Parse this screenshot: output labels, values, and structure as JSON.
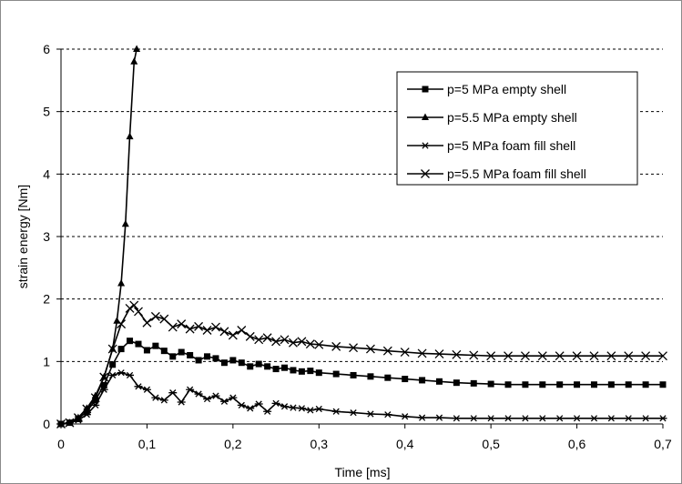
{
  "chart_data": {
    "type": "line",
    "xlabel": "Time [ms]",
    "ylabel": "strain energy [Nm]",
    "xlim": [
      0,
      0.7
    ],
    "ylim": [
      0,
      6
    ],
    "x_ticks": [
      "0",
      "0,1",
      "0,2",
      "0,3",
      "0,4",
      "0,5",
      "0,6",
      "0,7"
    ],
    "y_ticks": [
      "0",
      "1",
      "2",
      "3",
      "4",
      "5",
      "6"
    ],
    "grid": "horizontal dashed",
    "legend_position": "top-right",
    "series": [
      {
        "name": "p=5 MPa empty shell",
        "marker": "square",
        "points": [
          [
            0,
            0
          ],
          [
            0.01,
            0.02
          ],
          [
            0.02,
            0.08
          ],
          [
            0.03,
            0.2
          ],
          [
            0.04,
            0.38
          ],
          [
            0.05,
            0.62
          ],
          [
            0.06,
            0.95
          ],
          [
            0.07,
            1.2
          ],
          [
            0.08,
            1.33
          ],
          [
            0.09,
            1.28
          ],
          [
            0.1,
            1.18
          ],
          [
            0.11,
            1.25
          ],
          [
            0.12,
            1.17
          ],
          [
            0.13,
            1.08
          ],
          [
            0.14,
            1.15
          ],
          [
            0.15,
            1.1
          ],
          [
            0.16,
            1.02
          ],
          [
            0.17,
            1.08
          ],
          [
            0.18,
            1.05
          ],
          [
            0.19,
            0.98
          ],
          [
            0.2,
            1.02
          ],
          [
            0.21,
            0.98
          ],
          [
            0.22,
            0.92
          ],
          [
            0.23,
            0.96
          ],
          [
            0.24,
            0.92
          ],
          [
            0.25,
            0.88
          ],
          [
            0.26,
            0.9
          ],
          [
            0.27,
            0.86
          ],
          [
            0.28,
            0.84
          ],
          [
            0.29,
            0.85
          ],
          [
            0.3,
            0.82
          ],
          [
            0.32,
            0.8
          ],
          [
            0.34,
            0.78
          ],
          [
            0.36,
            0.76
          ],
          [
            0.38,
            0.74
          ],
          [
            0.4,
            0.72
          ],
          [
            0.42,
            0.7
          ],
          [
            0.44,
            0.68
          ],
          [
            0.46,
            0.66
          ],
          [
            0.48,
            0.65
          ],
          [
            0.5,
            0.64
          ],
          [
            0.52,
            0.63
          ],
          [
            0.54,
            0.63
          ],
          [
            0.56,
            0.63
          ],
          [
            0.58,
            0.63
          ],
          [
            0.6,
            0.63
          ],
          [
            0.62,
            0.63
          ],
          [
            0.64,
            0.63
          ],
          [
            0.66,
            0.63
          ],
          [
            0.68,
            0.63
          ],
          [
            0.7,
            0.63
          ]
        ]
      },
      {
        "name": "p=5.5 MPa empty shell",
        "marker": "triangle",
        "points": [
          [
            0,
            0
          ],
          [
            0.01,
            0.02
          ],
          [
            0.02,
            0.1
          ],
          [
            0.03,
            0.25
          ],
          [
            0.04,
            0.45
          ],
          [
            0.05,
            0.75
          ],
          [
            0.06,
            1.2
          ],
          [
            0.065,
            1.65
          ],
          [
            0.07,
            2.25
          ],
          [
            0.075,
            3.2
          ],
          [
            0.08,
            4.6
          ],
          [
            0.085,
            5.8
          ],
          [
            0.088,
            6.0
          ]
        ]
      },
      {
        "name": "p=5 MPa foam fill shell",
        "marker": "asterisk",
        "points": [
          [
            0,
            0
          ],
          [
            0.01,
            0.02
          ],
          [
            0.02,
            0.06
          ],
          [
            0.03,
            0.15
          ],
          [
            0.04,
            0.3
          ],
          [
            0.05,
            0.55
          ],
          [
            0.06,
            0.78
          ],
          [
            0.07,
            0.82
          ],
          [
            0.08,
            0.78
          ],
          [
            0.09,
            0.6
          ],
          [
            0.1,
            0.55
          ],
          [
            0.11,
            0.42
          ],
          [
            0.12,
            0.38
          ],
          [
            0.13,
            0.5
          ],
          [
            0.14,
            0.35
          ],
          [
            0.15,
            0.55
          ],
          [
            0.16,
            0.48
          ],
          [
            0.17,
            0.4
          ],
          [
            0.18,
            0.45
          ],
          [
            0.19,
            0.36
          ],
          [
            0.2,
            0.42
          ],
          [
            0.21,
            0.3
          ],
          [
            0.22,
            0.25
          ],
          [
            0.23,
            0.32
          ],
          [
            0.24,
            0.2
          ],
          [
            0.25,
            0.33
          ],
          [
            0.26,
            0.28
          ],
          [
            0.27,
            0.26
          ],
          [
            0.28,
            0.25
          ],
          [
            0.29,
            0.22
          ],
          [
            0.3,
            0.24
          ],
          [
            0.32,
            0.2
          ],
          [
            0.34,
            0.18
          ],
          [
            0.36,
            0.16
          ],
          [
            0.38,
            0.15
          ],
          [
            0.4,
            0.12
          ],
          [
            0.42,
            0.1
          ],
          [
            0.44,
            0.1
          ],
          [
            0.46,
            0.09
          ],
          [
            0.48,
            0.09
          ],
          [
            0.5,
            0.09
          ],
          [
            0.52,
            0.09
          ],
          [
            0.54,
            0.09
          ],
          [
            0.56,
            0.09
          ],
          [
            0.58,
            0.09
          ],
          [
            0.6,
            0.09
          ],
          [
            0.62,
            0.09
          ],
          [
            0.64,
            0.09
          ],
          [
            0.66,
            0.09
          ],
          [
            0.68,
            0.09
          ],
          [
            0.7,
            0.09
          ]
        ]
      },
      {
        "name": "p=5.5 MPa foam fill shell",
        "marker": "cross",
        "points": [
          [
            0,
            0
          ],
          [
            0.01,
            0.02
          ],
          [
            0.02,
            0.1
          ],
          [
            0.03,
            0.24
          ],
          [
            0.04,
            0.42
          ],
          [
            0.05,
            0.75
          ],
          [
            0.06,
            1.2
          ],
          [
            0.07,
            1.6
          ],
          [
            0.08,
            1.85
          ],
          [
            0.085,
            1.9
          ],
          [
            0.09,
            1.8
          ],
          [
            0.1,
            1.62
          ],
          [
            0.11,
            1.72
          ],
          [
            0.12,
            1.68
          ],
          [
            0.13,
            1.55
          ],
          [
            0.14,
            1.6
          ],
          [
            0.15,
            1.52
          ],
          [
            0.16,
            1.56
          ],
          [
            0.17,
            1.5
          ],
          [
            0.18,
            1.55
          ],
          [
            0.19,
            1.48
          ],
          [
            0.2,
            1.42
          ],
          [
            0.21,
            1.5
          ],
          [
            0.22,
            1.4
          ],
          [
            0.23,
            1.35
          ],
          [
            0.24,
            1.38
          ],
          [
            0.25,
            1.32
          ],
          [
            0.26,
            1.35
          ],
          [
            0.27,
            1.3
          ],
          [
            0.28,
            1.32
          ],
          [
            0.29,
            1.28
          ],
          [
            0.3,
            1.27
          ],
          [
            0.32,
            1.24
          ],
          [
            0.34,
            1.22
          ],
          [
            0.36,
            1.2
          ],
          [
            0.38,
            1.17
          ],
          [
            0.4,
            1.15
          ],
          [
            0.42,
            1.13
          ],
          [
            0.44,
            1.12
          ],
          [
            0.46,
            1.11
          ],
          [
            0.48,
            1.1
          ],
          [
            0.5,
            1.09
          ],
          [
            0.52,
            1.09
          ],
          [
            0.54,
            1.09
          ],
          [
            0.56,
            1.09
          ],
          [
            0.58,
            1.09
          ],
          [
            0.6,
            1.09
          ],
          [
            0.62,
            1.09
          ],
          [
            0.64,
            1.09
          ],
          [
            0.66,
            1.09
          ],
          [
            0.68,
            1.09
          ],
          [
            0.7,
            1.09
          ]
        ]
      }
    ]
  }
}
